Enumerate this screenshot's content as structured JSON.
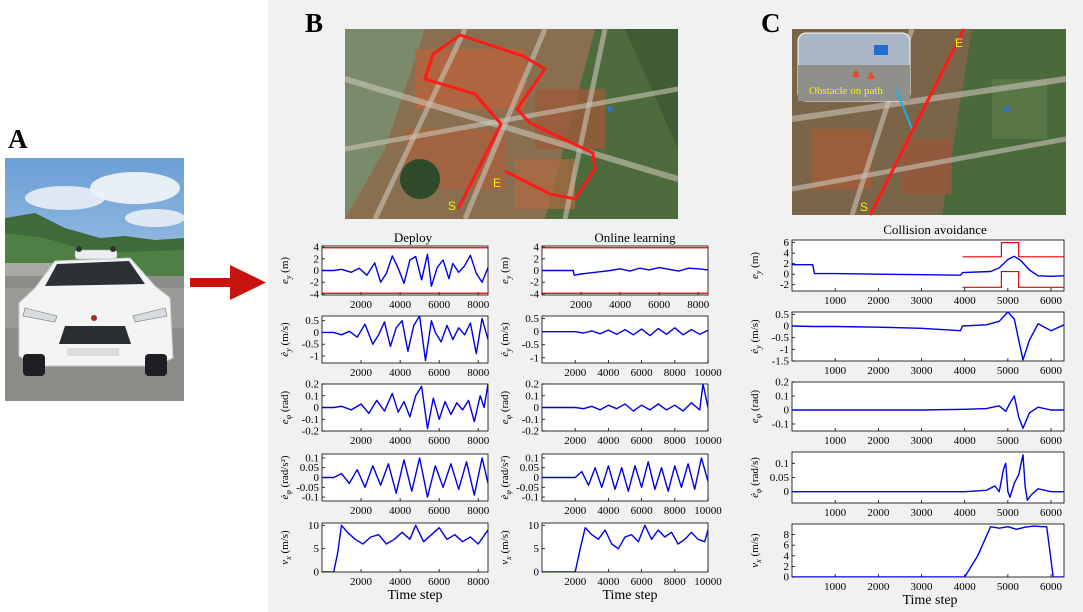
{
  "panels": {
    "a": "A",
    "b": "B",
    "c": "C"
  },
  "map_b": {
    "start_label": "S",
    "end_label": "E"
  },
  "map_c": {
    "start_label": "S",
    "end_label": "E",
    "inset_caption": "Obstacle on path"
  },
  "titles": {
    "deploy": "Deploy",
    "online": "Online learning",
    "collision": "Collision avoidance"
  },
  "xlabel": "Time step",
  "colors": {
    "trace": "#0000e6",
    "bound": "#e60000",
    "route": "#ff1a1a",
    "panel_bg": "#f1f1f1"
  },
  "icons": {
    "arrow": "right-arrow-icon"
  },
  "chart_data": [
    {
      "id": "deploy_ey",
      "type": "line",
      "panel": "B",
      "title": "Deploy",
      "ylabel": "e_y (m)",
      "xlim": [
        0,
        8500
      ],
      "ylim": [
        -4.2,
        4.2
      ],
      "xticks": [
        2000,
        4000,
        6000,
        8000
      ],
      "yticks": [
        -4,
        -2,
        0,
        2,
        4
      ],
      "hlines": [
        3.9,
        -3.9
      ],
      "series": [
        {
          "x": [
            0,
            600,
            1000,
            1500,
            1900,
            2300,
            2700,
            3000,
            3300,
            3600,
            3900,
            4200,
            4500,
            4800,
            5100,
            5400,
            5600,
            5900,
            6200,
            6500,
            6700,
            7000,
            7300,
            7600,
            7900,
            8200,
            8500
          ],
          "y": [
            0,
            0,
            0.2,
            -0.3,
            0.4,
            -0.8,
            1.3,
            -2.0,
            -0.5,
            2.5,
            0.4,
            -2.2,
            1.8,
            2.4,
            -1.6,
            2.8,
            -2.7,
            0.5,
            1.8,
            -1.4,
            1.2,
            -0.3,
            0.8,
            2.6,
            -0.5,
            -2.0,
            0.5
          ]
        }
      ]
    },
    {
      "id": "deploy_eydot",
      "type": "line",
      "panel": "B",
      "ylabel": "ė_y (m/s)",
      "xlim": [
        0,
        8500
      ],
      "ylim": [
        -1.3,
        0.7
      ],
      "xticks": [
        2000,
        4000,
        6000,
        8000
      ],
      "yticks": [
        -1,
        -0.5,
        0,
        0.5
      ],
      "series": [
        {
          "x": [
            0,
            600,
            1000,
            1400,
            1800,
            2200,
            2600,
            2900,
            3200,
            3500,
            3800,
            4100,
            4400,
            4700,
            5000,
            5300,
            5600,
            5800,
            6100,
            6400,
            6700,
            7000,
            7300,
            7600,
            7900,
            8200,
            8500
          ],
          "y": [
            0,
            0,
            -0.1,
            0.05,
            -0.2,
            0.35,
            -0.5,
            -0.1,
            0.45,
            -0.6,
            0.2,
            0.5,
            -0.8,
            0.3,
            0.7,
            -1.2,
            0.5,
            0.0,
            -0.4,
            0.3,
            -0.3,
            0.2,
            -0.1,
            0.4,
            -0.9,
            0.6,
            -0.3
          ]
        }
      ]
    },
    {
      "id": "deploy_ephi",
      "type": "line",
      "panel": "B",
      "ylabel": "e_φ (rad)",
      "xlim": [
        0,
        8500
      ],
      "ylim": [
        -0.2,
        0.2
      ],
      "xticks": [
        2000,
        4000,
        6000,
        8000
      ],
      "yticks": [
        -0.2,
        -0.1,
        0,
        0.1,
        0.2
      ],
      "series": [
        {
          "x": [
            0,
            600,
            1000,
            1500,
            2000,
            2400,
            2800,
            3200,
            3600,
            3900,
            4200,
            4500,
            4800,
            5100,
            5400,
            5700,
            6000,
            6300,
            6600,
            6900,
            7200,
            7500,
            7800,
            8100,
            8300,
            8500
          ],
          "y": [
            0,
            0,
            0.01,
            -0.02,
            0.03,
            -0.05,
            0.06,
            -0.03,
            0.12,
            -0.04,
            0.05,
            -0.08,
            0.1,
            0.18,
            -0.18,
            0.08,
            -0.1,
            0.05,
            -0.06,
            0.04,
            -0.02,
            0.06,
            -0.12,
            0.1,
            0.0,
            0.2
          ]
        }
      ]
    },
    {
      "id": "deploy_ephidot",
      "type": "line",
      "panel": "B",
      "ylabel": "ė_φ (rad/s²)",
      "xlim": [
        0,
        8500
      ],
      "ylim": [
        -0.12,
        0.12
      ],
      "xticks": [
        2000,
        4000,
        6000,
        8000
      ],
      "yticks": [
        -0.1,
        -0.05,
        0,
        0.05,
        0.1
      ],
      "series": [
        {
          "x": [
            0,
            600,
            1000,
            1400,
            1800,
            2200,
            2600,
            3000,
            3400,
            3800,
            4200,
            4600,
            5000,
            5400,
            5800,
            6200,
            6600,
            7000,
            7400,
            7800,
            8200,
            8500
          ],
          "y": [
            0,
            0,
            0.02,
            -0.03,
            0.04,
            -0.05,
            0.06,
            -0.04,
            0.07,
            -0.08,
            0.09,
            -0.07,
            0.1,
            -0.1,
            0.06,
            -0.05,
            0.07,
            -0.06,
            0.08,
            -0.09,
            0.1,
            -0.03
          ]
        }
      ]
    },
    {
      "id": "deploy_vx",
      "type": "line",
      "panel": "B",
      "ylabel": "v_x (m/s)",
      "xlabel": "Time step",
      "xlim": [
        0,
        8500
      ],
      "ylim": [
        0,
        10.5
      ],
      "xticks": [
        2000,
        4000,
        6000,
        8000
      ],
      "yticks": [
        0,
        5,
        10
      ],
      "series": [
        {
          "x": [
            0,
            600,
            800,
            1000,
            1300,
            1700,
            2100,
            2500,
            2900,
            3300,
            3700,
            4100,
            4500,
            4800,
            5200,
            5600,
            6000,
            6400,
            6800,
            7200,
            7600,
            8000,
            8500
          ],
          "y": [
            0,
            0,
            4,
            10,
            8.5,
            7,
            6,
            7.5,
            8,
            6,
            7,
            8.5,
            7,
            10,
            6.5,
            8,
            9.5,
            7,
            8,
            6.5,
            7.5,
            6,
            9
          ]
        }
      ]
    },
    {
      "id": "online_ey",
      "type": "line",
      "panel": "B",
      "title": "Online learning",
      "ylabel": "e_y (m)",
      "xlim": [
        0,
        8500
      ],
      "ylim": [
        -4.2,
        4.2
      ],
      "xticks": [
        2000,
        4000,
        6000,
        8000
      ],
      "yticks": [
        -4,
        -2,
        0,
        2,
        4
      ],
      "hlines": [
        3.9,
        -3.9
      ],
      "series": [
        {
          "x": [
            0,
            1600,
            1650,
            2000,
            2500,
            3000,
            3500,
            4000,
            4500,
            5000,
            5500,
            6000,
            6500,
            7000,
            7500,
            8000,
            8500
          ],
          "y": [
            0,
            0,
            -0.8,
            -0.6,
            -0.4,
            -0.2,
            0,
            0.3,
            -0.1,
            0.4,
            0.1,
            0.5,
            0.2,
            -0.1,
            0.4,
            0.3,
            0.1
          ]
        }
      ]
    },
    {
      "id": "online_eydot",
      "type": "line",
      "panel": "B",
      "ylabel": "ė_y (m/s)",
      "xlim": [
        0,
        10000
      ],
      "ylim": [
        -1.2,
        0.6
      ],
      "xticks": [
        2000,
        4000,
        6000,
        8000,
        10000
      ],
      "yticks": [
        -1,
        -0.5,
        0,
        0.5
      ],
      "series": [
        {
          "x": [
            0,
            2000,
            2500,
            3000,
            3500,
            4000,
            4500,
            5000,
            5500,
            6000,
            6500,
            7000,
            7500,
            8000,
            8500,
            9000,
            9500,
            10000
          ],
          "y": [
            0,
            0,
            -0.05,
            0.03,
            -0.08,
            0.06,
            -0.1,
            0.08,
            -0.12,
            0.1,
            -0.15,
            0.12,
            -0.1,
            0.15,
            -0.12,
            0.08,
            -0.1,
            0.05
          ]
        }
      ]
    },
    {
      "id": "online_ephi",
      "type": "line",
      "panel": "B",
      "ylabel": "e_φ (rad)",
      "xlim": [
        0,
        10000
      ],
      "ylim": [
        -0.2,
        0.2
      ],
      "xticks": [
        2000,
        4000,
        6000,
        8000,
        10000
      ],
      "yticks": [
        -0.2,
        -0.1,
        0,
        0.1,
        0.2
      ],
      "series": [
        {
          "x": [
            0,
            2000,
            2500,
            3000,
            3500,
            4000,
            4500,
            5000,
            5500,
            6000,
            6500,
            7000,
            7500,
            8000,
            8500,
            9000,
            9500,
            9700,
            10000
          ],
          "y": [
            0,
            0,
            -0.01,
            0.01,
            -0.02,
            0.02,
            -0.01,
            0.03,
            -0.03,
            0.02,
            -0.02,
            0.03,
            -0.02,
            0.02,
            -0.03,
            0.04,
            -0.02,
            0.2,
            0.0
          ]
        }
      ]
    },
    {
      "id": "online_ephidot",
      "type": "line",
      "panel": "B",
      "ylabel": "ė_φ (rad/s²)",
      "xlim": [
        0,
        10000
      ],
      "ylim": [
        -0.12,
        0.12
      ],
      "xticks": [
        2000,
        4000,
        6000,
        8000,
        10000
      ],
      "yticks": [
        -0.1,
        -0.05,
        0,
        0.05,
        0.1
      ],
      "series": [
        {
          "x": [
            0,
            2000,
            2400,
            2800,
            3200,
            3600,
            4000,
            4400,
            4800,
            5200,
            5600,
            6000,
            6400,
            6800,
            7200,
            7600,
            8000,
            8400,
            8800,
            9200,
            9600,
            10000
          ],
          "y": [
            0,
            0,
            0.03,
            -0.04,
            0.05,
            -0.05,
            0.06,
            -0.06,
            0.05,
            -0.07,
            0.06,
            -0.05,
            0.08,
            -0.06,
            0.05,
            -0.07,
            0.06,
            -0.05,
            0.07,
            -0.06,
            0.1,
            -0.02
          ]
        }
      ]
    },
    {
      "id": "online_vx",
      "type": "line",
      "panel": "B",
      "ylabel": "v_x (m/s)",
      "xlabel": "Time step",
      "xlim": [
        0,
        10000
      ],
      "ylim": [
        0,
        10.5
      ],
      "xticks": [
        2000,
        4000,
        6000,
        8000,
        10000
      ],
      "yticks": [
        0,
        5,
        10
      ],
      "series": [
        {
          "x": [
            0,
            2000,
            2300,
            2600,
            3000,
            3400,
            3800,
            4200,
            4600,
            5000,
            5400,
            5800,
            6200,
            6600,
            7000,
            7400,
            7800,
            8200,
            8600,
            9000,
            9400,
            9800,
            10000
          ],
          "y": [
            0,
            0,
            5,
            9.5,
            8,
            7,
            9,
            6,
            5,
            7.5,
            8,
            6.5,
            10,
            7,
            9,
            7.5,
            8.5,
            6,
            7,
            8.5,
            7,
            6.5,
            9
          ]
        }
      ]
    },
    {
      "id": "collision_ey",
      "type": "line",
      "panel": "C",
      "title": "Collision avoidance",
      "ylabel": "e_y (m)",
      "xlim": [
        0,
        6300
      ],
      "ylim": [
        -3.2,
        6.5
      ],
      "xticks": [
        1000,
        2000,
        3000,
        4000,
        5000,
        6000
      ],
      "yticks": [
        -2,
        0,
        2,
        4,
        6
      ],
      "bound_upper": {
        "x": [
          3950,
          4850,
          4850,
          5250,
          5250,
          6300
        ],
        "y": [
          3.3,
          3.3,
          6,
          6,
          3.3,
          3.3
        ]
      },
      "bound_lower": {
        "x": [
          3950,
          4850,
          4850,
          5250,
          5250,
          6300
        ],
        "y": [
          -2.5,
          -2.5,
          0.5,
          0.5,
          -2.5,
          -2.5
        ]
      },
      "series": [
        {
          "x": [
            0,
            480,
            520,
            1000,
            2000,
            3000,
            3900,
            3950,
            4600,
            4800,
            5000,
            5150,
            5300,
            5500,
            5700,
            6000,
            6300
          ],
          "y": [
            1.8,
            1.8,
            0.1,
            0.1,
            0.0,
            -0.1,
            -0.2,
            0.3,
            0.5,
            1.2,
            2.8,
            3.4,
            2.6,
            0.8,
            -0.3,
            -0.4,
            -0.3
          ]
        }
      ]
    },
    {
      "id": "collision_eydot",
      "type": "line",
      "panel": "C",
      "ylabel": "ė_y (m/s)",
      "xlim": [
        0,
        6300
      ],
      "ylim": [
        -1.5,
        0.6
      ],
      "xticks": [
        1000,
        2000,
        3000,
        4000,
        5000,
        6000
      ],
      "yticks": [
        -1.5,
        -1,
        -0.5,
        0,
        0.5
      ],
      "series": [
        {
          "x": [
            0,
            500,
            1000,
            2000,
            3000,
            3900,
            3950,
            4500,
            4800,
            5000,
            5150,
            5250,
            5350,
            5500,
            5700,
            6000,
            6300
          ],
          "y": [
            0.0,
            -0.02,
            -0.02,
            -0.05,
            -0.1,
            -0.2,
            0.0,
            0.05,
            0.2,
            0.6,
            0.3,
            -0.6,
            -1.45,
            -0.6,
            0.1,
            -0.2,
            0.05
          ]
        }
      ]
    },
    {
      "id": "collision_ephi",
      "type": "line",
      "panel": "C",
      "ylabel": "e_φ (rad)",
      "xlim": [
        0,
        6300
      ],
      "ylim": [
        -0.15,
        0.2
      ],
      "xticks": [
        1000,
        2000,
        3000,
        4000,
        5000,
        6000
      ],
      "yticks": [
        -0.1,
        0,
        0.1,
        0.2
      ],
      "series": [
        {
          "x": [
            0,
            1000,
            2000,
            3000,
            4000,
            4500,
            4800,
            4950,
            5050,
            5150,
            5250,
            5350,
            5500,
            5700,
            6000,
            6300
          ],
          "y": [
            0,
            0,
            0,
            0,
            0.005,
            0.01,
            0.03,
            -0.01,
            0.05,
            0.1,
            -0.05,
            -0.13,
            -0.02,
            0.02,
            0.0,
            0.0
          ]
        }
      ]
    },
    {
      "id": "collision_ephidot",
      "type": "line",
      "panel": "C",
      "ylabel": "ė_φ (rad/s)",
      "xlim": [
        0,
        6300
      ],
      "ylim": [
        -0.04,
        0.14
      ],
      "xticks": [
        1000,
        2000,
        3000,
        4000,
        5000,
        6000
      ],
      "yticks": [
        0,
        0.05,
        0.1
      ],
      "series": [
        {
          "x": [
            0,
            500,
            1000,
            2000,
            3000,
            4000,
            4500,
            4700,
            4800,
            4900,
            4950,
            5000,
            5050,
            5150,
            5250,
            5350,
            5400,
            5450,
            5550,
            5700,
            6000,
            6300
          ],
          "y": [
            0,
            0,
            0,
            0,
            0,
            0,
            0.005,
            0.02,
            0.0,
            0.08,
            0.1,
            0.0,
            -0.02,
            0.03,
            0.06,
            0.13,
            0.02,
            -0.03,
            -0.01,
            0.01,
            0.0,
            0.0
          ]
        }
      ]
    },
    {
      "id": "collision_vx",
      "type": "line",
      "panel": "C",
      "ylabel": "v_x (m/s)",
      "xlabel": "Time step",
      "xlim": [
        0,
        6300
      ],
      "ylim": [
        0,
        10
      ],
      "xticks": [
        1000,
        2000,
        3000,
        4000,
        5000,
        6000
      ],
      "yticks": [
        0,
        2,
        4,
        6,
        8
      ],
      "series": [
        {
          "x": [
            0,
            4000,
            4300,
            4600,
            4800,
            5000,
            5200,
            5400,
            5600,
            5800,
            5900,
            6050,
            6300
          ],
          "y": [
            0,
            0,
            4,
            9.5,
            9.2,
            9.5,
            9.0,
            9.4,
            9.6,
            9.5,
            9.5,
            0,
            0
          ]
        }
      ]
    }
  ]
}
